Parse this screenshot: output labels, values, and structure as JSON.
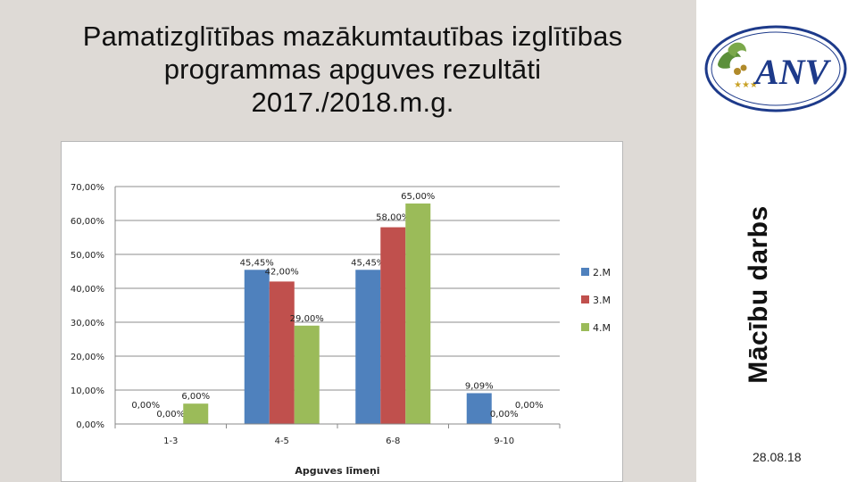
{
  "slide": {
    "title_lines": [
      "Pamatizglītības mazākumtautības izglītības",
      "programmas apguves rezultāti",
      "2017./2018.m.g."
    ],
    "side_label": "Mācību darbs",
    "date": "28.08.18",
    "logo_text": "ANV",
    "logo_icon": "oak-leaves-icon"
  },
  "colors": {
    "series": [
      "#4f81bd",
      "#c0504d",
      "#9bbb59"
    ],
    "background_left": "#dedad6"
  },
  "chart_data": {
    "type": "bar",
    "categories": [
      "1-3",
      "4-5",
      "6-8",
      "9-10"
    ],
    "series": [
      {
        "name": "2.M",
        "values": [
          0.0,
          45.45,
          45.45,
          9.09
        ],
        "labels": [
          "0,00%",
          "45,45%",
          "45,45%",
          "9,09%"
        ]
      },
      {
        "name": "3.M",
        "values": [
          0.0,
          42.0,
          58.0,
          0.0
        ],
        "labels": [
          "0,00%",
          "42,00%",
          "58,00%",
          "0,00%"
        ]
      },
      {
        "name": "4.M",
        "values": [
          6.0,
          29.0,
          65.0,
          0.0
        ],
        "labels": [
          "6,00%",
          "29,00%",
          "65,00%",
          "0,00%"
        ]
      }
    ],
    "xlabel": "Apguves līmeņi",
    "ylabel": "",
    "ylim": [
      0,
      70
    ],
    "yticks": [
      "0,00%",
      "10,00%",
      "20,00%",
      "30,00%",
      "40,00%",
      "50,00%",
      "60,00%",
      "70,00%"
    ],
    "grid": true,
    "legend": "right"
  }
}
